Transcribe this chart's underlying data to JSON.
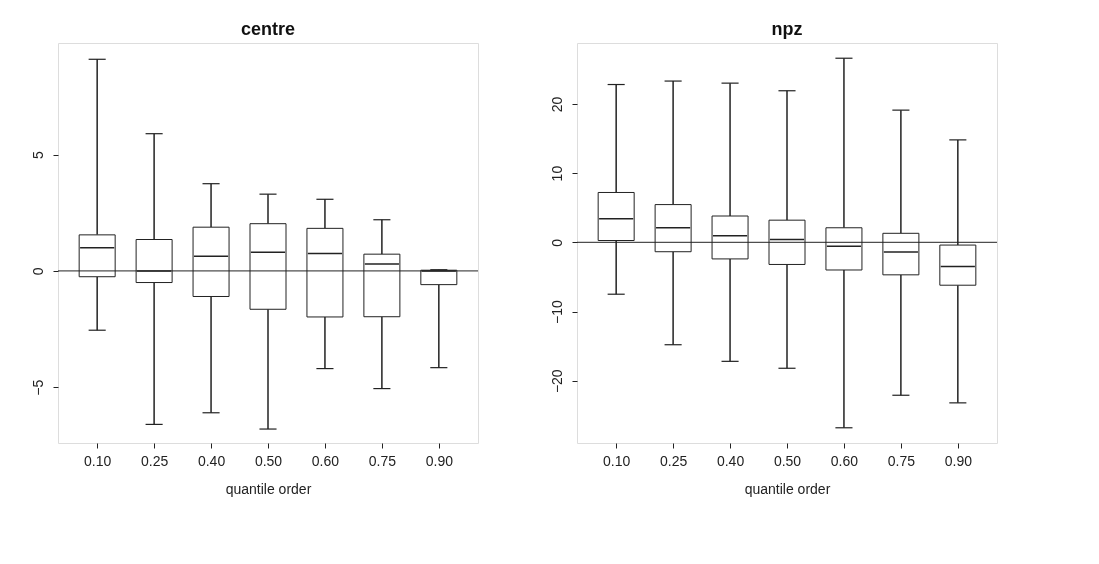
{
  "chart_data": [
    {
      "type": "box",
      "title": "centre",
      "xlabel": "quantile order",
      "categories": [
        "0.10",
        "0.25",
        "0.40",
        "0.50",
        "0.60",
        "0.75",
        "0.90"
      ],
      "boxes": [
        {
          "low": -2.55,
          "q1": -0.25,
          "median": 1.0,
          "q3": 1.55,
          "high": 9.1
        },
        {
          "low": -6.6,
          "q1": -0.5,
          "median": 0.0,
          "q3": 1.35,
          "high": 5.9
        },
        {
          "low": -6.1,
          "q1": -1.1,
          "median": 0.63,
          "q3": 1.88,
          "high": 3.75
        },
        {
          "low": -6.8,
          "q1": -1.65,
          "median": 0.8,
          "q3": 2.03,
          "high": 3.3
        },
        {
          "low": -4.2,
          "q1": -1.98,
          "median": 0.75,
          "q3": 1.83,
          "high": 3.08
        },
        {
          "low": -5.06,
          "q1": -1.97,
          "median": 0.3,
          "q3": 0.72,
          "high": 2.2
        },
        {
          "low": -4.16,
          "q1": -0.59,
          "median": 0.0,
          "q3": 0.03,
          "high": 0.05
        }
      ],
      "ylim": [
        -7.4,
        9.8
      ],
      "yticks": [
        -5,
        0,
        5
      ],
      "ref_lines": [
        {
          "axis": "y",
          "value": 0
        }
      ],
      "grid": false
    },
    {
      "type": "box",
      "title": "npz",
      "xlabel": "quantile order",
      "categories": [
        "0.10",
        "0.25",
        "0.40",
        "0.50",
        "0.60",
        "0.75",
        "0.90"
      ],
      "boxes": [
        {
          "low": -7.5,
          "q1": 0.26,
          "median": 3.4,
          "q3": 7.2,
          "high": 22.8
        },
        {
          "low": -14.8,
          "q1": -1.36,
          "median": 2.1,
          "q3": 5.45,
          "high": 23.3
        },
        {
          "low": -17.2,
          "q1": -2.4,
          "median": 0.94,
          "q3": 3.8,
          "high": 23.0
        },
        {
          "low": -18.2,
          "q1": -3.2,
          "median": 0.4,
          "q3": 3.2,
          "high": 21.9
        },
        {
          "low": -26.8,
          "q1": -4.0,
          "median": -0.58,
          "q3": 2.1,
          "high": 26.6
        },
        {
          "low": -22.1,
          "q1": -4.7,
          "median": -1.4,
          "q3": 1.3,
          "high": 19.1
        },
        {
          "low": -23.2,
          "q1": -6.2,
          "median": -3.5,
          "q3": -0.4,
          "high": 14.8
        }
      ],
      "ylim": [
        -29,
        28.8
      ],
      "yticks": [
        -20,
        -10,
        0,
        10,
        20
      ],
      "ref_lines": [
        {
          "axis": "y",
          "value": 0
        }
      ],
      "grid": false
    }
  ]
}
